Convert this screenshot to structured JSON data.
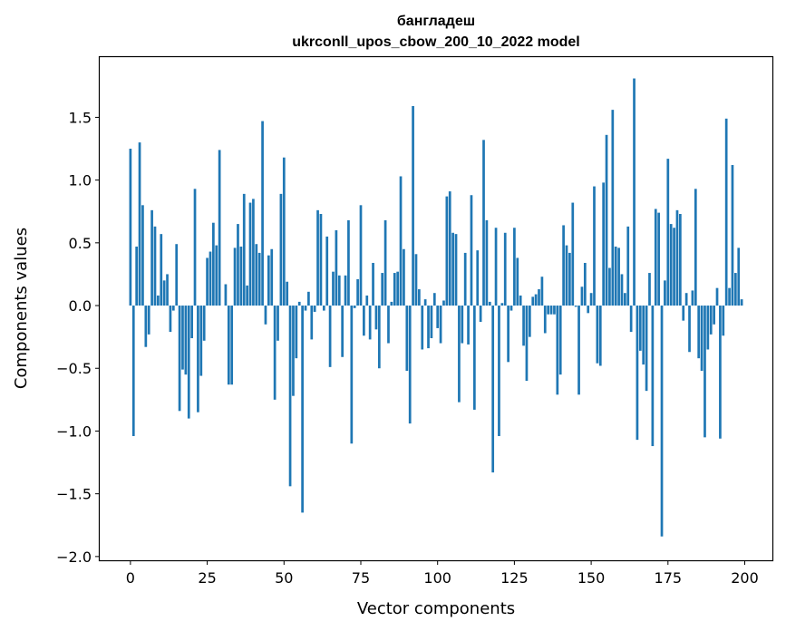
{
  "chart_data": {
    "type": "bar",
    "title": "бангладеш",
    "subtitle": "ukrconll_upos_cbow_200_10_2022 model",
    "xlabel": "Vector components",
    "ylabel": "Components values",
    "xlim": [
      -10,
      209
    ],
    "ylim": [
      -2.03,
      1.98
    ],
    "xticks": [
      0,
      25,
      50,
      75,
      100,
      125,
      150,
      175,
      200
    ],
    "xtick_labels": [
      "0",
      "25",
      "50",
      "75",
      "100",
      "125",
      "150",
      "175",
      "200"
    ],
    "yticks": [
      -2.0,
      -1.5,
      -1.0,
      -0.5,
      0.0,
      0.5,
      1.0,
      1.5
    ],
    "ytick_labels": [
      "−2.0",
      "−1.5",
      "−1.0",
      "−0.5",
      "0.0",
      "0.5",
      "1.0",
      "1.5"
    ],
    "bar_color": "#1f77b4",
    "grid": false,
    "values": [
      1.25,
      -1.04,
      0.47,
      1.3,
      0.8,
      -0.33,
      -0.23,
      0.76,
      0.63,
      0.08,
      0.57,
      0.2,
      0.25,
      -0.21,
      -0.04,
      0.49,
      -0.84,
      -0.51,
      -0.55,
      -0.9,
      -0.26,
      0.93,
      -0.85,
      -0.56,
      -0.28,
      0.38,
      0.43,
      0.66,
      0.48,
      1.24,
      0.0,
      0.17,
      -0.63,
      -0.63,
      0.46,
      0.65,
      0.47,
      0.89,
      0.16,
      0.82,
      0.85,
      0.49,
      0.42,
      1.47,
      -0.15,
      0.4,
      0.45,
      -0.75,
      -0.28,
      0.89,
      1.18,
      0.19,
      -1.44,
      -0.72,
      -0.42,
      0.03,
      -1.65,
      -0.04,
      0.11,
      -0.27,
      -0.05,
      0.76,
      0.73,
      -0.04,
      0.55,
      -0.49,
      0.27,
      0.6,
      0.24,
      -0.41,
      0.24,
      0.68,
      -1.1,
      -0.02,
      0.21,
      0.8,
      -0.24,
      0.08,
      -0.27,
      0.34,
      -0.19,
      -0.5,
      0.26,
      0.68,
      -0.3,
      0.03,
      0.26,
      0.27,
      1.03,
      0.45,
      -0.52,
      -0.94,
      1.59,
      0.41,
      0.13,
      -0.35,
      0.05,
      -0.34,
      -0.26,
      0.1,
      -0.18,
      -0.3,
      0.04,
      0.87,
      0.91,
      0.58,
      0.57,
      -0.77,
      -0.3,
      0.42,
      -0.31,
      0.88,
      -0.83,
      0.44,
      -0.13,
      1.32,
      0.68,
      0.03,
      -1.33,
      0.62,
      -1.04,
      0.02,
      0.58,
      -0.45,
      -0.04,
      0.62,
      0.38,
      0.08,
      -0.32,
      -0.6,
      -0.25,
      0.07,
      0.09,
      0.13,
      0.23,
      -0.22,
      -0.07,
      -0.07,
      -0.07,
      -0.71,
      -0.55,
      0.64,
      0.48,
      0.42,
      0.82,
      -0.01,
      -0.71,
      0.15,
      0.34,
      -0.06,
      0.1,
      0.95,
      -0.46,
      -0.48,
      0.98,
      1.36,
      0.3,
      1.56,
      0.47,
      0.46,
      0.25,
      0.1,
      0.63,
      -0.21,
      1.81,
      -1.07,
      -0.36,
      -0.47,
      -0.68,
      0.26,
      -1.12,
      0.77,
      0.74,
      -1.84,
      0.2,
      1.17,
      0.65,
      0.62,
      0.76,
      0.73,
      -0.12,
      0.1,
      -0.37,
      0.12,
      0.93,
      -0.42,
      -0.52,
      -1.05,
      -0.35,
      -0.23,
      -0.15,
      0.14,
      -1.06,
      -0.24,
      1.49,
      0.14,
      1.12,
      0.26,
      0.46,
      0.05
    ]
  }
}
